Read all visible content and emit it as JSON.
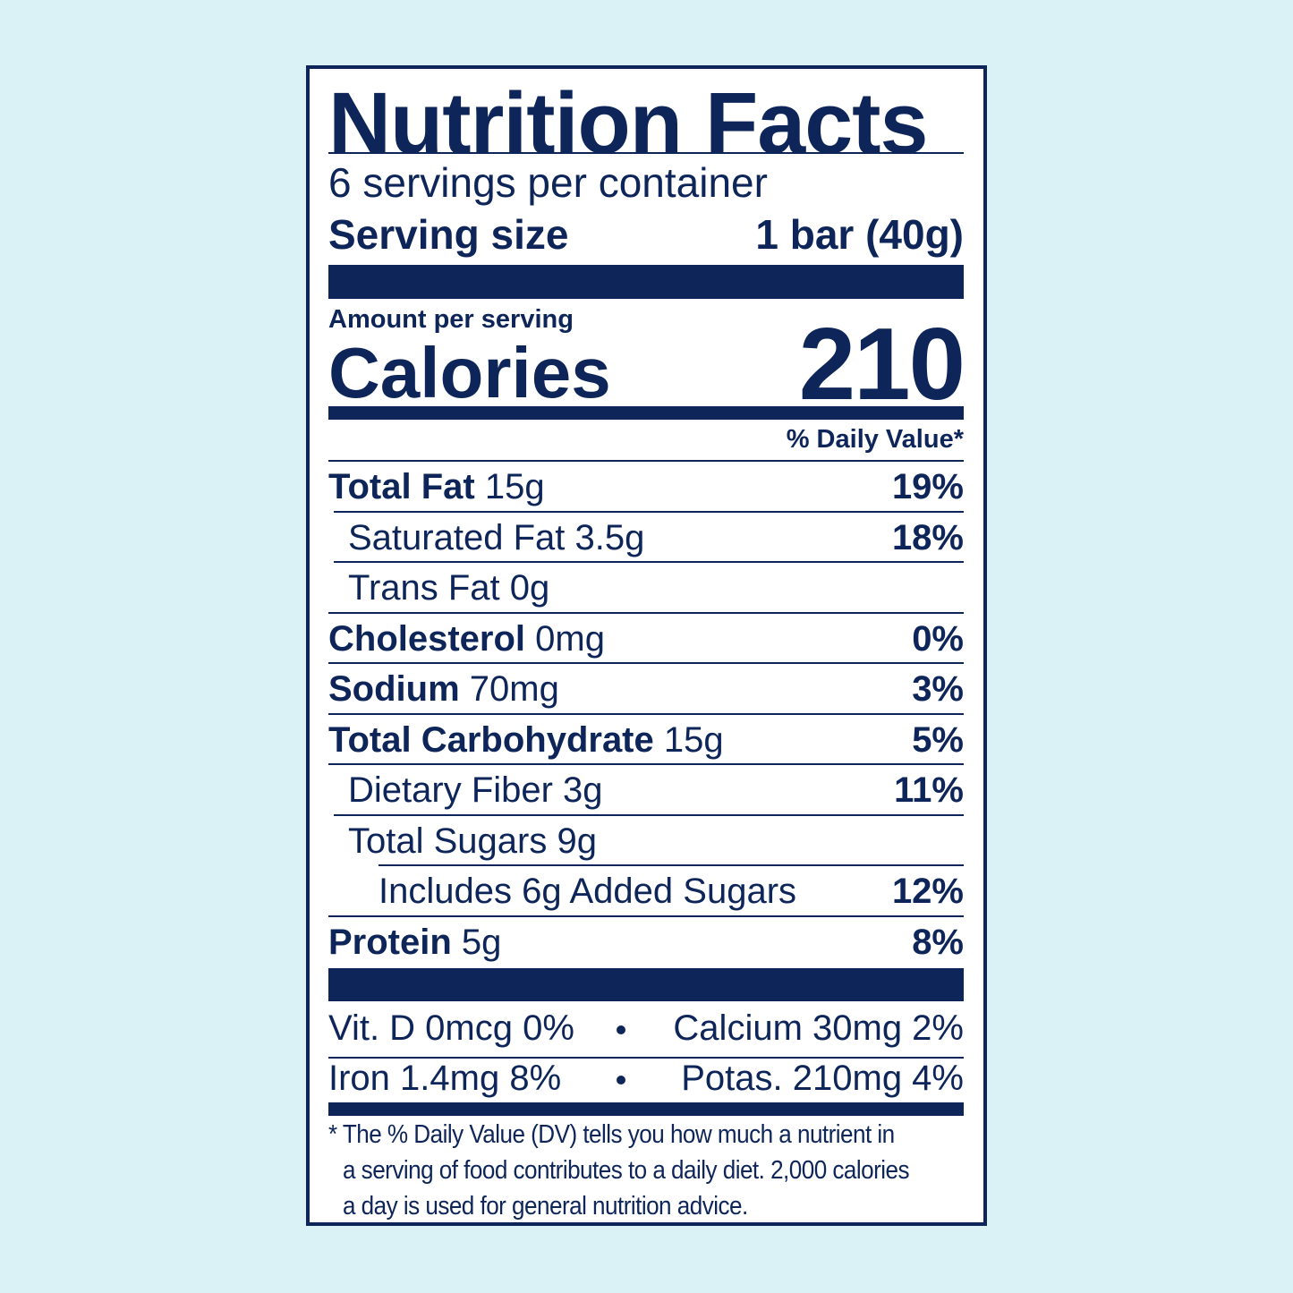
{
  "label": {
    "title": "Nutrition Facts",
    "servings": "6 servings per container",
    "serving_size": {
      "label": "Serving size",
      "value": "1 bar (40g)"
    },
    "amount_per_serving": "Amount per serving",
    "calories": {
      "label": "Calories",
      "value": "210"
    },
    "daily_value_header": "% Daily Value*",
    "nutrients": [
      {
        "name": "Total Fat",
        "amount": "15g",
        "dv": "19%"
      },
      {
        "name": "Saturated Fat 3.5g",
        "dv": "18%"
      },
      {
        "name": "Trans Fat 0g"
      },
      {
        "name": "Cholesterol",
        "amount": "0mg",
        "dv": "0%"
      },
      {
        "name": "Sodium",
        "amount": "70mg",
        "dv": "3%"
      },
      {
        "name": "Total Carbohydrate",
        "amount": "15g",
        "dv": "5%"
      },
      {
        "name": "Dietary Fiber 3g",
        "dv": "11%"
      },
      {
        "name": "Total Sugars 9g"
      },
      {
        "name": "Includes 6g Added Sugars",
        "dv": "12%"
      },
      {
        "name": "Protein",
        "amount": "5g",
        "dv": "8%"
      }
    ],
    "micronutrients": [
      [
        "Vit. D 0mcg 0%",
        "Calcium 30mg 2%"
      ],
      [
        "Iron 1.4mg 8%",
        "Potas. 210mg 4%"
      ]
    ],
    "footnote": [
      "* The % Daily Value (DV) tells you how much a nutrient in",
      "a serving of food contributes to a daily diet. 2,000 calories",
      "a day is used for general nutrition advice."
    ]
  }
}
